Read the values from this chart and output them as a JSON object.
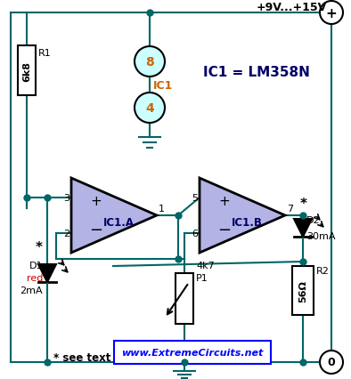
{
  "bg_color": "#ffffff",
  "wire_color": "#006666",
  "wire_lw": 1.5,
  "component_color": "#000000",
  "op_amp_fill": "#b3b3e6",
  "ic_pin_circle_fill": "#ccffff",
  "text_color_blue": "#000066",
  "text_color_orange": "#cc6600",
  "text_color_red": "#cc0000",
  "label_ic1_eq": "IC1 = LM358N",
  "label_vcc": "+9V...+15V",
  "label_r1": "R1",
  "label_r1_val": "6k8",
  "label_r2": "R2",
  "label_r2_val": "56Ω",
  "label_p1": "P1",
  "label_p1_val": "4k7",
  "label_ic1a": "IC1.A",
  "label_ic1b": "IC1.B",
  "label_d1": "D1",
  "label_d2": "D2",
  "label_d1_color": "red",
  "label_d1_current": "2mA",
  "label_d2_current": "30mA",
  "label_ic1_vcc_pin": "8",
  "label_ic1_gnd_pin": "4",
  "label_see_text": "* see text",
  "label_website": "www.ExtremeCircuits.net",
  "label_ic1_text": "IC1"
}
